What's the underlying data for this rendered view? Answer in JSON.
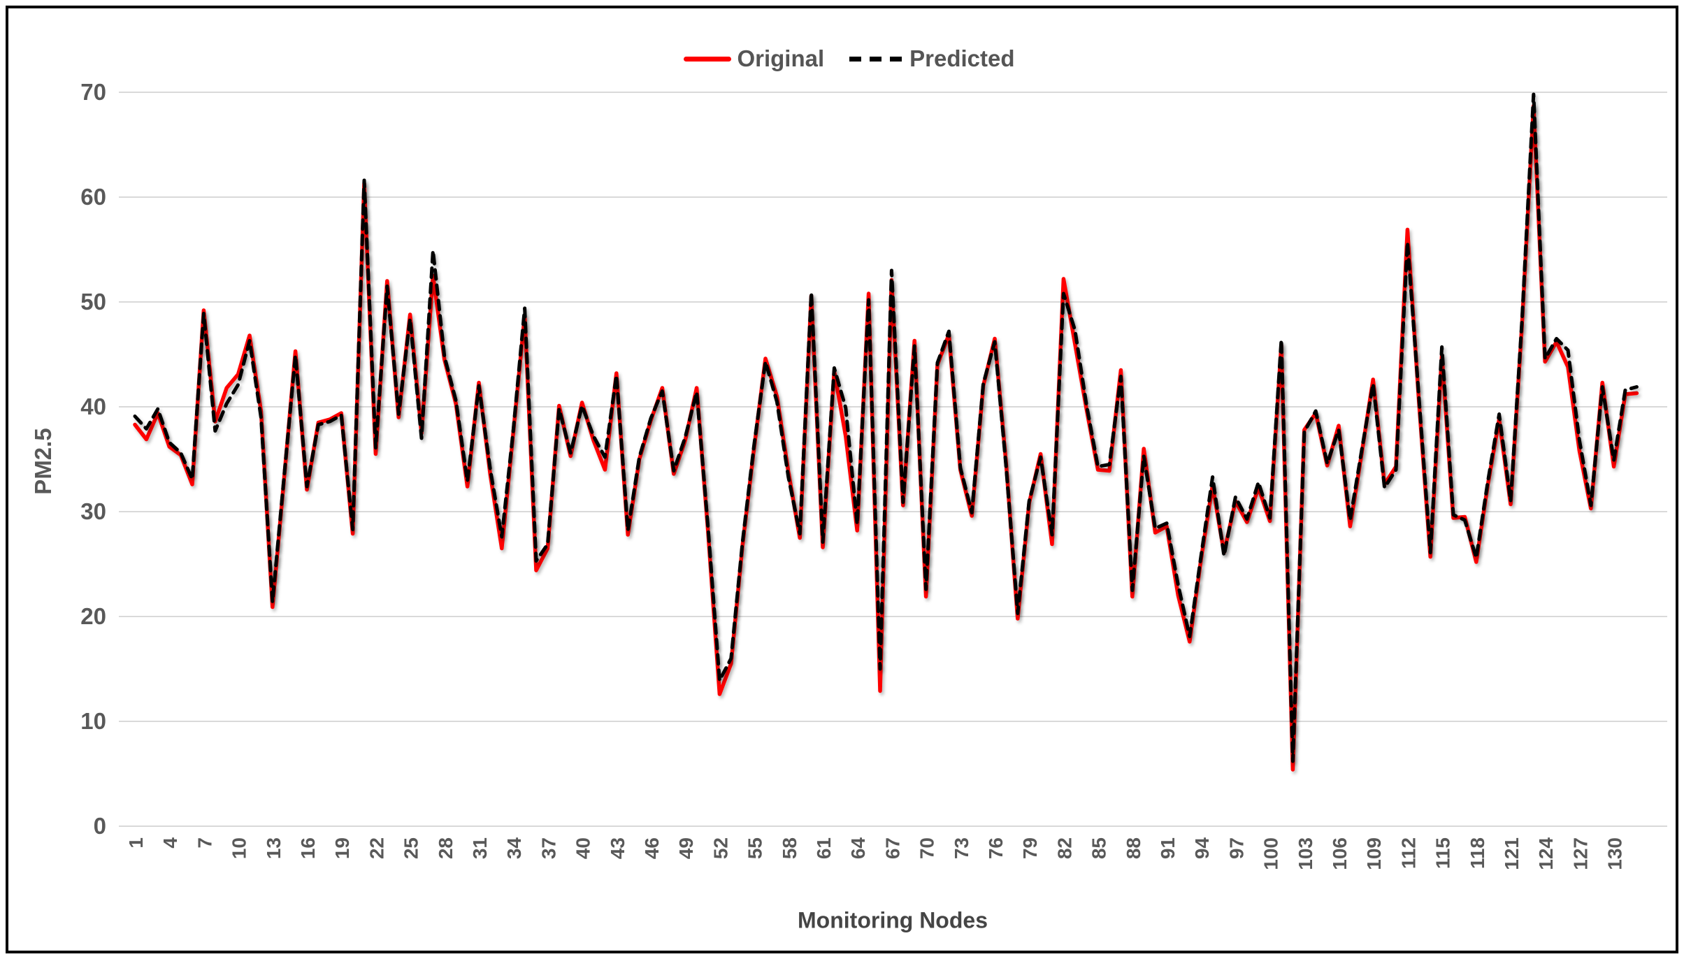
{
  "window": {
    "background": "#ffffff",
    "frame_color": "#000000"
  },
  "legend": {
    "items": [
      {
        "label": "Original",
        "color": "#fe0000",
        "style": "solid"
      },
      {
        "label": "Predicted",
        "color": "#000000",
        "style": "dashed"
      }
    ]
  },
  "axes": {
    "label_color": "#595959",
    "gridline_color": "#d9d9d9"
  },
  "chart_data": {
    "type": "line",
    "title": "",
    "xlabel": "Monitoring Nodes",
    "ylabel": "PM2.5",
    "ylim": [
      0,
      70
    ],
    "y_ticks": [
      0,
      10,
      20,
      30,
      40,
      50,
      60,
      70
    ],
    "x_tick_interval": 3,
    "x_ticks": [
      "1",
      "4",
      "7",
      "10",
      "13",
      "16",
      "19",
      "22",
      "25",
      "28",
      "31",
      "34",
      "37",
      "40",
      "43",
      "46",
      "49",
      "52",
      "55",
      "58",
      "61",
      "64",
      "67",
      "70",
      "73",
      "76",
      "79",
      "82",
      "85",
      "88",
      "91",
      "94",
      "97",
      "100",
      "103",
      "106",
      "109",
      "112",
      "115",
      "118",
      "121",
      "124",
      "127",
      "130"
    ],
    "x_count": 132,
    "grid": "horizontal",
    "legend_position": "top-center",
    "series": [
      {
        "name": "Original",
        "color": "#fe0000",
        "style": "solid",
        "values": [
          38.3,
          36.9,
          39.4,
          36.2,
          35.4,
          32.6,
          49.2,
          38.6,
          41.8,
          43.1,
          46.8,
          39.6,
          20.9,
          33.0,
          45.3,
          32.1,
          38.5,
          38.8,
          39.4,
          27.9,
          61.3,
          35.5,
          52.0,
          39.0,
          48.8,
          37.5,
          52.5,
          44.5,
          40.3,
          32.4,
          42.3,
          33.5,
          26.5,
          37.5,
          48.7,
          24.4,
          26.5,
          40.1,
          35.3,
          40.4,
          36.8,
          34.0,
          43.2,
          27.8,
          35.0,
          38.7,
          41.8,
          33.6,
          36.8,
          41.8,
          28.0,
          12.6,
          15.5,
          26.8,
          36.0,
          44.6,
          41.0,
          33.8,
          27.5,
          50.6,
          26.6,
          43.4,
          37.2,
          28.2,
          50.8,
          12.9,
          52.1,
          30.6,
          46.3,
          21.9,
          44.0,
          46.9,
          34.0,
          29.6,
          42.0,
          46.5,
          34.5,
          19.8,
          30.8,
          35.5,
          26.9,
          52.2,
          46.0,
          39.8,
          34.0,
          33.9,
          43.5,
          21.9,
          36.0,
          28.0,
          28.6,
          22.0,
          17.6,
          25.5,
          32.5,
          26.1,
          31.0,
          29.0,
          32.3,
          29.1,
          45.9,
          5.4,
          37.8,
          39.4,
          34.4,
          38.2,
          28.6,
          35.5,
          42.6,
          32.6,
          34.3,
          56.9,
          40.5,
          25.7,
          44.9,
          29.4,
          29.5,
          25.2,
          32.5,
          38.8,
          30.7,
          48.0,
          68.7,
          44.3,
          46.2,
          43.8,
          35.8,
          30.3,
          42.3,
          34.3,
          41.2,
          41.3
        ]
      },
      {
        "name": "Predicted",
        "color": "#000000",
        "style": "dashed",
        "values": [
          39.1,
          37.9,
          39.8,
          36.6,
          35.6,
          33.1,
          48.9,
          37.7,
          40.3,
          42.1,
          46.3,
          39.0,
          21.4,
          33.2,
          44.9,
          32.4,
          38.3,
          38.6,
          39.2,
          28.3,
          61.6,
          36.1,
          51.5,
          39.3,
          48.4,
          37.0,
          54.9,
          44.8,
          40.6,
          32.9,
          42.0,
          34.0,
          27.6,
          37.7,
          49.4,
          25.3,
          26.9,
          39.8,
          35.6,
          40.1,
          37.2,
          35.2,
          43.0,
          28.2,
          35.2,
          38.9,
          41.5,
          33.9,
          37.1,
          41.4,
          28.4,
          13.9,
          16.0,
          27.1,
          36.3,
          44.3,
          40.5,
          33.3,
          27.9,
          50.9,
          27.1,
          43.7,
          39.9,
          28.8,
          50.2,
          15.0,
          53.0,
          30.9,
          45.8,
          22.6,
          44.2,
          47.2,
          34.2,
          29.9,
          42.2,
          46.2,
          34.2,
          20.3,
          31.0,
          35.2,
          27.8,
          50.8,
          47.3,
          40.2,
          34.3,
          34.5,
          42.9,
          22.5,
          35.3,
          28.4,
          28.9,
          23.0,
          18.1,
          25.8,
          33.3,
          25.8,
          31.4,
          29.3,
          32.8,
          29.4,
          46.4,
          6.2,
          37.6,
          39.6,
          34.6,
          37.8,
          29.2,
          35.8,
          42.2,
          32.3,
          34.0,
          55.7,
          40.9,
          26.1,
          45.7,
          29.7,
          29.2,
          25.6,
          32.8,
          39.3,
          31.0,
          48.4,
          69.8,
          44.6,
          46.5,
          45.4,
          36.8,
          30.6,
          41.9,
          34.9,
          41.6,
          41.9
        ]
      }
    ]
  }
}
